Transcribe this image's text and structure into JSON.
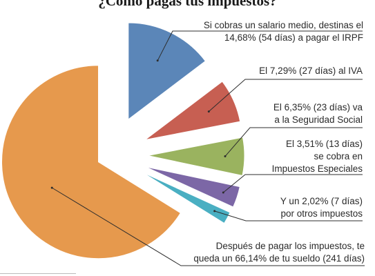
{
  "chart_data": {
    "type": "pie",
    "title": "¿Cómo pagas tus impuestos?",
    "unit": "%",
    "slices": [
      {
        "value": 14.68,
        "days": 54,
        "color": "#5b86b8",
        "label_lines": [
          "Si cobras un salario medio, destinas el",
          "14,68% (54 días) a pagar el IRPF"
        ]
      },
      {
        "value": 7.29,
        "days": 27,
        "color": "#c75f52",
        "label_lines": [
          "El 7,29% (27 días) al IVA"
        ]
      },
      {
        "value": 6.35,
        "days": 23,
        "color": "#9ab35f",
        "label_lines": [
          "El 6,35% (23 días) va",
          "a la Seguridad Social"
        ]
      },
      {
        "value": 3.51,
        "days": 13,
        "color": "#7c67a6",
        "label_lines": [
          "El 3,51% (13 días)",
          "se cobra en",
          "Impuestos Especiales"
        ]
      },
      {
        "value": 2.02,
        "days": 7,
        "color": "#4aafc2",
        "label_lines": [
          "Y un 2,02% (7 días)",
          "por otros impuestos"
        ]
      },
      {
        "value": 66.14,
        "days": 241,
        "color": "#e6994d",
        "label_lines": [
          "Después de pagar los impuestos, te",
          "queda un 66,14% de tu sueldo (241 días)"
        ]
      }
    ]
  }
}
